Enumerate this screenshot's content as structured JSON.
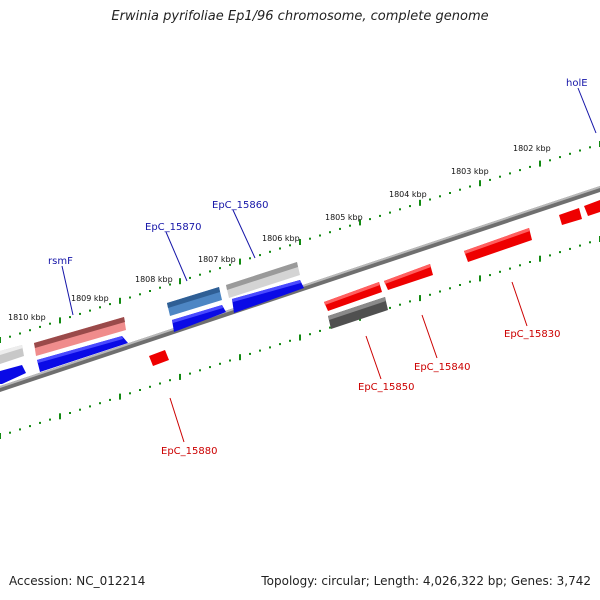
{
  "title": "Erwinia pyrifoliae Ep1/96 chromosome, complete genome",
  "footer": {
    "accession": "Accession: NC_012214",
    "summary": "Topology: circular; Length: 4,026,322 bp; Genes: 3,742"
  },
  "scale": {
    "labels": [
      "1810 kbp",
      "1809 kbp",
      "1808 kbp",
      "1807 kbp",
      "1806 kbp",
      "1805 kbp",
      "1804 kbp",
      "1803 kbp",
      "1802 kbp"
    ]
  },
  "genes": [
    {
      "id": "rsmF",
      "strand": "forward",
      "color": "#e46a6a"
    },
    {
      "id": "EpC_15870",
      "strand": "forward",
      "color": "#3a74b8"
    },
    {
      "id": "EpC_15860",
      "strand": "forward",
      "color": "#b3b3b3"
    },
    {
      "id": "holE",
      "strand": "forward",
      "color": "#c0c0c0"
    },
    {
      "id": "EpC_15880",
      "strand": "reverse",
      "color": "#ee0000"
    },
    {
      "id": "EpC_15850",
      "strand": "reverse",
      "color": "#555555"
    },
    {
      "id": "EpC_15840",
      "strand": "reverse",
      "color": "#ee0000"
    },
    {
      "id": "EpC_15830",
      "strand": "reverse",
      "color": "#ee0000"
    }
  ],
  "colors": {
    "forward_label": "#1515a8",
    "reverse_label": "#cc0000",
    "forward_cds": "#0a0ae6",
    "reverse_cds": "#ee0000",
    "backbone": "#7a7a7a",
    "tick": "#128a12"
  }
}
